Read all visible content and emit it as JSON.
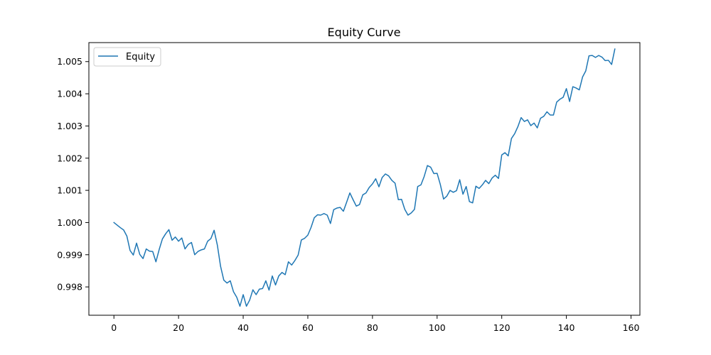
{
  "chart_data": {
    "type": "line",
    "title": "Equity Curve",
    "xlabel": "",
    "ylabel": "",
    "xlim": [
      -7.75,
      162.75
    ],
    "ylim": [
      0.99712,
      1.00559
    ],
    "x_ticks": [
      0,
      20,
      40,
      60,
      80,
      100,
      120,
      140,
      160
    ],
    "y_ticks": [
      0.998,
      0.999,
      1.0,
      1.001,
      1.002,
      1.003,
      1.004,
      1.005
    ],
    "y_tick_labels": [
      "0.998",
      "0.999",
      "1.000",
      "1.001",
      "1.002",
      "1.003",
      "1.004",
      "1.005"
    ],
    "grid": false,
    "legend_position": "upper-left",
    "series": [
      {
        "name": "Equity",
        "color": "#1f77b4",
        "x_start": 0,
        "x_step": 1,
        "values": [
          1.0,
          0.99992,
          0.99984,
          0.99977,
          0.99958,
          0.99913,
          0.99899,
          0.99936,
          0.99901,
          0.99888,
          0.99918,
          0.99911,
          0.9991,
          0.99878,
          0.99916,
          0.99949,
          0.99965,
          0.99978,
          0.99945,
          0.99955,
          0.99942,
          0.99952,
          0.99918,
          0.99932,
          0.99938,
          0.999,
          0.9991,
          0.99915,
          0.99918,
          0.99942,
          0.9995,
          0.99976,
          0.9993,
          0.99864,
          0.99821,
          0.99812,
          0.99819,
          0.99785,
          0.99768,
          0.9974,
          0.99776,
          0.9974,
          0.99759,
          0.99791,
          0.99776,
          0.99793,
          0.99795,
          0.99819,
          0.9979,
          0.99834,
          0.99806,
          0.99834,
          0.99845,
          0.99838,
          0.99878,
          0.99868,
          0.99882,
          0.99899,
          0.99946,
          0.99951,
          0.99961,
          0.99985,
          1.00015,
          1.00024,
          1.00023,
          1.00028,
          1.00023,
          0.99997,
          1.0004,
          1.00045,
          1.00047,
          1.00035,
          1.00063,
          1.00092,
          1.00071,
          1.00051,
          1.00056,
          1.00086,
          1.00092,
          1.00109,
          1.0012,
          1.00136,
          1.00111,
          1.0014,
          1.00151,
          1.00145,
          1.00131,
          1.00122,
          1.00071,
          1.00072,
          1.00041,
          1.00023,
          1.0003,
          1.00041,
          1.00112,
          1.00117,
          1.00143,
          1.00177,
          1.00172,
          1.00152,
          1.00153,
          1.00118,
          1.00073,
          1.00082,
          1.001,
          1.00094,
          1.00099,
          1.00133,
          1.00088,
          1.00112,
          1.00065,
          1.00061,
          1.00113,
          1.00106,
          1.00117,
          1.00131,
          1.00121,
          1.00138,
          1.00147,
          1.00137,
          1.0021,
          1.00217,
          1.00207,
          1.00261,
          1.00276,
          1.00298,
          1.00326,
          1.00314,
          1.00319,
          1.00301,
          1.00309,
          1.00294,
          1.00324,
          1.0033,
          1.00344,
          1.00334,
          1.00334,
          1.00374,
          1.00383,
          1.00389,
          1.00416,
          1.00376,
          1.00422,
          1.00418,
          1.00412,
          1.00452,
          1.00471,
          1.00518,
          1.00519,
          1.00513,
          1.00519,
          1.00514,
          1.00503,
          1.00504,
          1.00491,
          1.00539
        ]
      }
    ]
  }
}
